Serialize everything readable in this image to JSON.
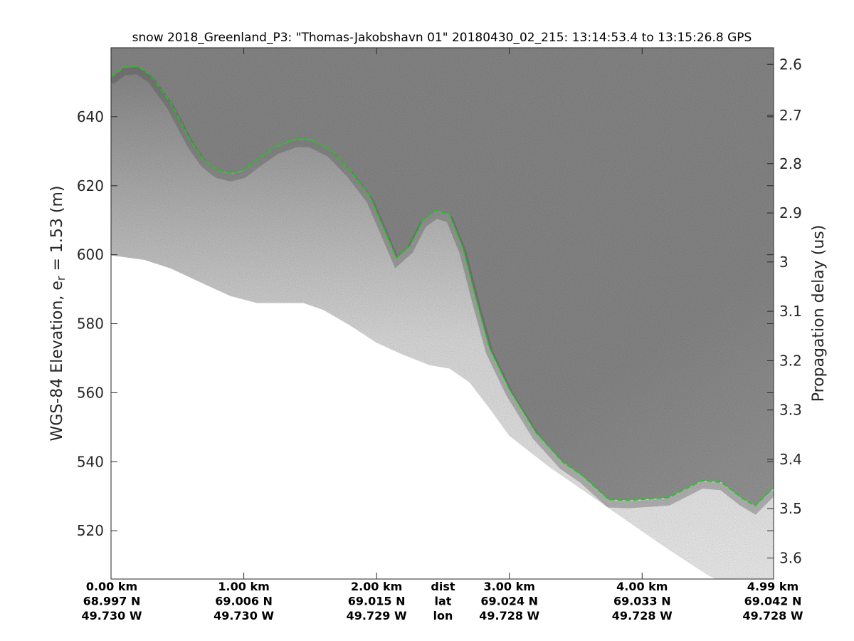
{
  "chart_data": {
    "type": "radar-echogram",
    "title": "snow 2018_Greenland_P3: \"Thomas-Jakobshavn 01\"  20180430_02_215: 13:14:53.4 to 13:15:26.8 GPS",
    "ylabel_left": {
      "main": "WGS-84 Elevation, e",
      "sub": "r",
      "rest": " = 1.53 (m)"
    },
    "ylabel_right": "Propagation delay (us)",
    "ylim": [
      506,
      660
    ],
    "xlim": [
      0,
      4.99
    ],
    "left_ticks": [
      520,
      540,
      560,
      580,
      600,
      620,
      640
    ],
    "right_ticks": [
      {
        "label": "2.6",
        "elev": 655.2
      },
      {
        "label": "2.7",
        "elev": 640.4
      },
      {
        "label": "2.8",
        "elev": 626.4
      },
      {
        "label": "2.9",
        "elev": 612.1
      },
      {
        "label": "3",
        "elev": 597.9
      },
      {
        "label": "3.1",
        "elev": 583.6
      },
      {
        "label": "3.2",
        "elev": 569.3
      },
      {
        "label": "3.3",
        "elev": 555.0
      },
      {
        "label": "3.4",
        "elev": 540.7
      },
      {
        "label": "3.5",
        "elev": 526.4
      },
      {
        "label": "3.6",
        "elev": 512.1
      }
    ],
    "x_tick_columns": [
      {
        "dist": 0.0,
        "lines": [
          "0.00 km",
          "68.997 N",
          "49.730 W"
        ]
      },
      {
        "dist": 1.0,
        "lines": [
          "1.00 km",
          "69.006 N",
          "49.730 W"
        ]
      },
      {
        "dist": 2.0,
        "lines": [
          "2.00 km",
          "69.015 N",
          "49.729 W"
        ]
      },
      {
        "dist": 2.5,
        "lines": [
          "dist",
          "lat",
          "lon"
        ]
      },
      {
        "dist": 3.0,
        "lines": [
          "3.00 km",
          "69.024 N",
          "49.728 W"
        ]
      },
      {
        "dist": 4.0,
        "lines": [
          "4.00 km",
          "69.033 N",
          "49.728 W"
        ]
      },
      {
        "dist": 4.99,
        "lines": [
          "4.99 km",
          "69.042 N",
          "49.728 W"
        ]
      }
    ],
    "surface_layer": {
      "name": "surface",
      "color": "#00dd00",
      "x": [
        0.0,
        0.1,
        0.2,
        0.3,
        0.45,
        0.6,
        0.7,
        0.8,
        0.9,
        1.0,
        1.1,
        1.25,
        1.4,
        1.5,
        1.65,
        1.8,
        1.95,
        2.05,
        2.15,
        2.25,
        2.35,
        2.45,
        2.55,
        2.65,
        2.75,
        2.85,
        3.0,
        3.2,
        3.4,
        3.55,
        3.75,
        3.9,
        4.1,
        4.2,
        4.45,
        4.6,
        4.75,
        4.85,
        4.99
      ],
      "y": [
        651.5,
        654.3,
        654.6,
        652.0,
        644.0,
        633.0,
        627.5,
        624.5,
        623.5,
        624.5,
        627.5,
        631.5,
        633.5,
        633.4,
        630.5,
        624.5,
        617.0,
        608.0,
        599.0,
        602.5,
        610.0,
        612.8,
        611.5,
        602.0,
        587.0,
        573.0,
        561.0,
        548.5,
        540.0,
        536.0,
        529.0,
        528.8,
        529.3,
        529.6,
        534.5,
        534.0,
        529.5,
        527.2,
        532.5
      ]
    },
    "echo_bottom": {
      "x": [
        0.0,
        0.25,
        0.45,
        0.7,
        0.9,
        1.1,
        1.3,
        1.45,
        1.6,
        1.8,
        2.0,
        2.2,
        2.3,
        2.4,
        2.55,
        2.7,
        2.85,
        3.0,
        3.3,
        3.6,
        3.9,
        4.2,
        4.5,
        4.8,
        4.99
      ],
      "y": [
        599.8,
        598.5,
        596.0,
        591.5,
        588.0,
        586.0,
        586.0,
        586.0,
        584.0,
        579.5,
        574.5,
        571.0,
        569.5,
        568.0,
        567.0,
        563.0,
        555.5,
        547.5,
        538.5,
        530.5,
        522.5,
        514.5,
        507.0,
        502.0,
        499.0
      ]
    },
    "grid": false,
    "colormap": "gray"
  }
}
